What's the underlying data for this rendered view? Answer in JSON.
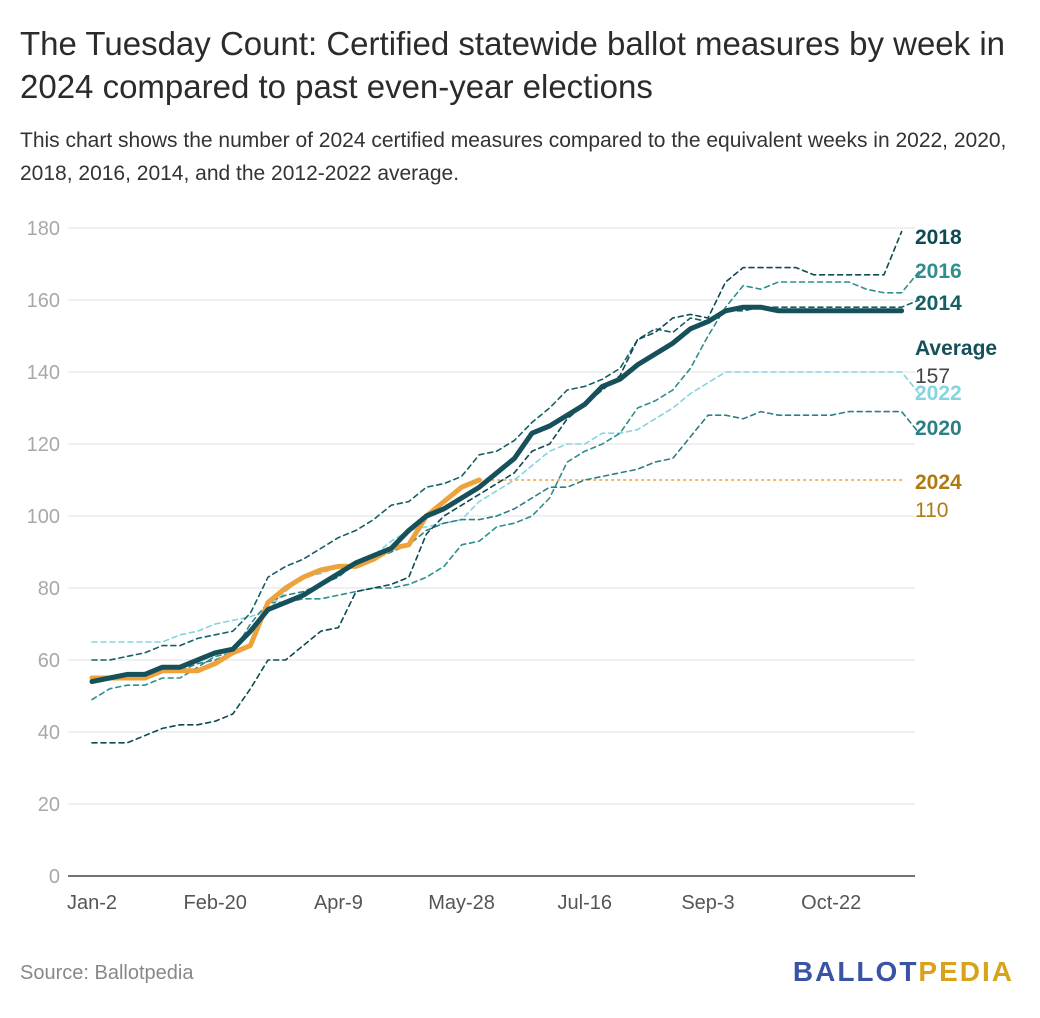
{
  "title": "The Tuesday Count: Certified statewide ballot measures by week in 2024 compared to past even-year elections",
  "subtitle": "This chart shows the number of 2024 certified measures compared to the equivalent weeks in 2022, 2020, 2018, 2016, 2014, and the 2012-2022 average.",
  "footer": {
    "source": "Source: Ballotpedia",
    "logo_part1": "BALLOT",
    "logo_part2": "PEDIA"
  },
  "colors": {
    "y2018": "#0d4a52",
    "y2016": "#2f8f8f",
    "y2014": "#146165",
    "avg": "#16505a",
    "y2022": "#86d4e0",
    "y2020": "#2b7f86",
    "y2024": "#eda23b",
    "y2024_text": "#b07a10",
    "grid": "#e0e0e0"
  },
  "chart_data": {
    "type": "line",
    "xlabel": "",
    "ylabel": "",
    "ylim": [
      0,
      180
    ],
    "yticks": [
      0,
      20,
      40,
      60,
      80,
      100,
      120,
      140,
      160,
      180
    ],
    "xticks": [
      {
        "week": 0,
        "label": "Jan-2"
      },
      {
        "week": 7,
        "label": "Feb-20"
      },
      {
        "week": 14,
        "label": "Apr-9"
      },
      {
        "week": 21,
        "label": "May-28"
      },
      {
        "week": 28,
        "label": "Jul-16"
      },
      {
        "week": 35,
        "label": "Sep-3"
      },
      {
        "week": 42,
        "label": "Oct-22"
      }
    ],
    "series": [
      {
        "name": "2018",
        "key": "y2018",
        "style": "dashed",
        "values": [
          37,
          37,
          37,
          39,
          41,
          42,
          42,
          43,
          45,
          52,
          60,
          60,
          64,
          68,
          69,
          79,
          80,
          81,
          83,
          95,
          100,
          103,
          106,
          109,
          112,
          118,
          120,
          127,
          131,
          135,
          139,
          149,
          151,
          155,
          156,
          155,
          165,
          169,
          169,
          169,
          169,
          167,
          167,
          167,
          167,
          167,
          179
        ]
      },
      {
        "name": "2016",
        "key": "y2016",
        "style": "dashed",
        "values": [
          49,
          52,
          53,
          53,
          55,
          55,
          58,
          61,
          62,
          70,
          76,
          76,
          77,
          77,
          78,
          79,
          80,
          80,
          81,
          83,
          86,
          92,
          93,
          97,
          98,
          100,
          105,
          115,
          118,
          120,
          123,
          130,
          132,
          135,
          141,
          150,
          158,
          164,
          163,
          165,
          165,
          165,
          165,
          165,
          163,
          162,
          162,
          168
        ]
      },
      {
        "name": "2014",
        "key": "y2014",
        "style": "dashed",
        "values": [
          60,
          60,
          61,
          62,
          64,
          64,
          66,
          67,
          68,
          73,
          83,
          86,
          88,
          91,
          94,
          96,
          99,
          103,
          104,
          108,
          109,
          111,
          117,
          118,
          121,
          126,
          130,
          135,
          136,
          138,
          141,
          149,
          152,
          151,
          155,
          154,
          157,
          157,
          158,
          158,
          158,
          158,
          158,
          158,
          158,
          158,
          158,
          160
        ]
      },
      {
        "name": "2022",
        "key": "y2022",
        "style": "dashed",
        "values": [
          65,
          65,
          65,
          65,
          65,
          67,
          68,
          70,
          71,
          72,
          74,
          79,
          83,
          84,
          86,
          87,
          89,
          93,
          96,
          97,
          98,
          99,
          104,
          107,
          110,
          114,
          118,
          120,
          120,
          123,
          123,
          124,
          127,
          130,
          134,
          137,
          140,
          140,
          140,
          140,
          140,
          140,
          140,
          140,
          140,
          140,
          140,
          134
        ]
      },
      {
        "name": "2020",
        "key": "y2020",
        "style": "dashed",
        "values": [
          54,
          55,
          56,
          56,
          57,
          57,
          59,
          60,
          62,
          64,
          76,
          78,
          79,
          81,
          83,
          87,
          88,
          90,
          92,
          96,
          98,
          99,
          99,
          100,
          102,
          105,
          108,
          108,
          110,
          111,
          112,
          113,
          115,
          116,
          122,
          128,
          128,
          127,
          129,
          128,
          128,
          128,
          128,
          129,
          129,
          129,
          129,
          123
        ]
      },
      {
        "name": "Average",
        "key": "avg",
        "style": "solid-thick",
        "values": [
          54,
          55,
          56,
          56,
          58,
          58,
          60,
          62,
          63,
          68,
          74,
          76,
          78,
          81,
          84,
          87,
          89,
          91,
          96,
          100,
          102,
          105,
          108,
          112,
          116,
          123,
          125,
          128,
          131,
          136,
          138,
          142,
          145,
          148,
          152,
          154,
          157,
          158,
          158,
          157,
          157,
          157,
          157,
          157,
          157,
          157,
          157
        ]
      },
      {
        "name": "2024",
        "key": "y2024",
        "style": "solid",
        "values": [
          55,
          55,
          55,
          55,
          57,
          57,
          57,
          59,
          62,
          64,
          76,
          80,
          83,
          85,
          86,
          86,
          88,
          91,
          92,
          100,
          104,
          108,
          110
        ]
      }
    ],
    "reference_line": {
      "series": "2024",
      "value": 110
    },
    "end_labels": [
      {
        "key": "y2018",
        "text": "2018"
      },
      {
        "key": "y2016",
        "text": "2016"
      },
      {
        "key": "y2014",
        "text": "2014"
      },
      {
        "key": "avg",
        "text": "Average",
        "value_text": "157"
      },
      {
        "key": "y2022",
        "text": "2022"
      },
      {
        "key": "y2020",
        "text": "2020"
      },
      {
        "key": "y2024",
        "text": "2024",
        "value_text": "110"
      }
    ]
  }
}
